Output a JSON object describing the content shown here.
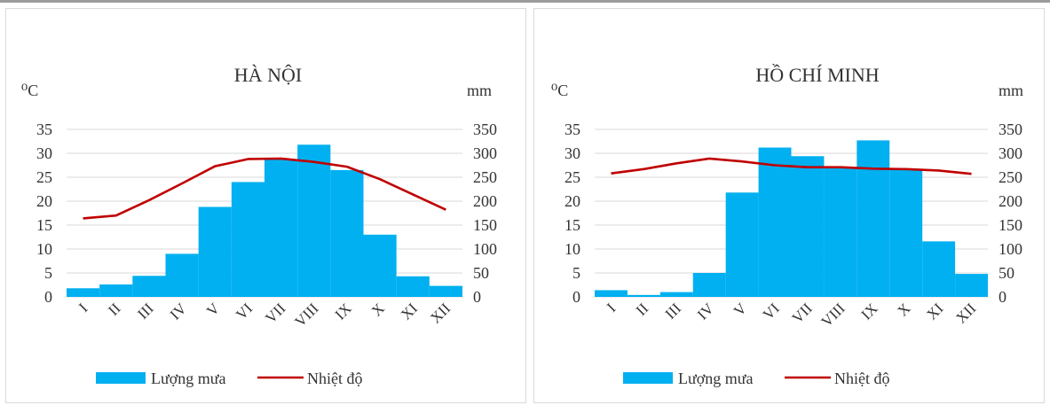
{
  "chart_data": [
    {
      "type": "bar",
      "title": "HÀ NỘI",
      "ylabel": "⁰C",
      "y2label": "mm",
      "categories": [
        "I",
        "II",
        "III",
        "IV",
        "V",
        "VI",
        "VII",
        "VIII",
        "IX",
        "X",
        "XI",
        "XII"
      ],
      "ylim": [
        0,
        35
      ],
      "y2lim": [
        0,
        350
      ],
      "yticks": [
        0,
        5,
        10,
        15,
        20,
        25,
        30,
        35
      ],
      "y2ticks": [
        0,
        50,
        100,
        150,
        200,
        250,
        300,
        350
      ],
      "grid": true,
      "legend_position": "bottom",
      "series": [
        {
          "name": "Lượng mưa",
          "type": "bar",
          "axis": "right",
          "color": "#00b0f0",
          "values": [
            18,
            26,
            44,
            90,
            188,
            240,
            288,
            318,
            265,
            130,
            43,
            23
          ]
        },
        {
          "name": "Nhiệt độ",
          "type": "line",
          "axis": "left",
          "color": "#c00000",
          "values": [
            16.4,
            17.0,
            20.2,
            23.7,
            27.3,
            28.8,
            28.9,
            28.2,
            27.2,
            24.6,
            21.4,
            18.2
          ]
        }
      ]
    },
    {
      "type": "bar",
      "title": "HỒ CHÍ MINH",
      "ylabel": "⁰C",
      "y2label": "mm",
      "categories": [
        "I",
        "II",
        "III",
        "IV",
        "V",
        "VI",
        "VII",
        "VIII",
        "IX",
        "X",
        "XI",
        "XII"
      ],
      "ylim": [
        0,
        35
      ],
      "y2lim": [
        0,
        350
      ],
      "yticks": [
        0,
        5,
        10,
        15,
        20,
        25,
        30,
        35
      ],
      "y2ticks": [
        0,
        50,
        100,
        150,
        200,
        250,
        300,
        350
      ],
      "grid": true,
      "legend_position": "bottom",
      "series": [
        {
          "name": "Lượng mưa",
          "type": "bar",
          "axis": "right",
          "color": "#00b0f0",
          "values": [
            14,
            4,
            10,
            50,
            218,
            312,
            294,
            270,
            327,
            267,
            116,
            48
          ]
        },
        {
          "name": "Nhiệt độ",
          "type": "line",
          "axis": "left",
          "color": "#c00000",
          "values": [
            25.8,
            26.7,
            27.9,
            28.9,
            28.3,
            27.5,
            27.1,
            27.1,
            26.8,
            26.7,
            26.4,
            25.7
          ]
        }
      ]
    }
  ]
}
